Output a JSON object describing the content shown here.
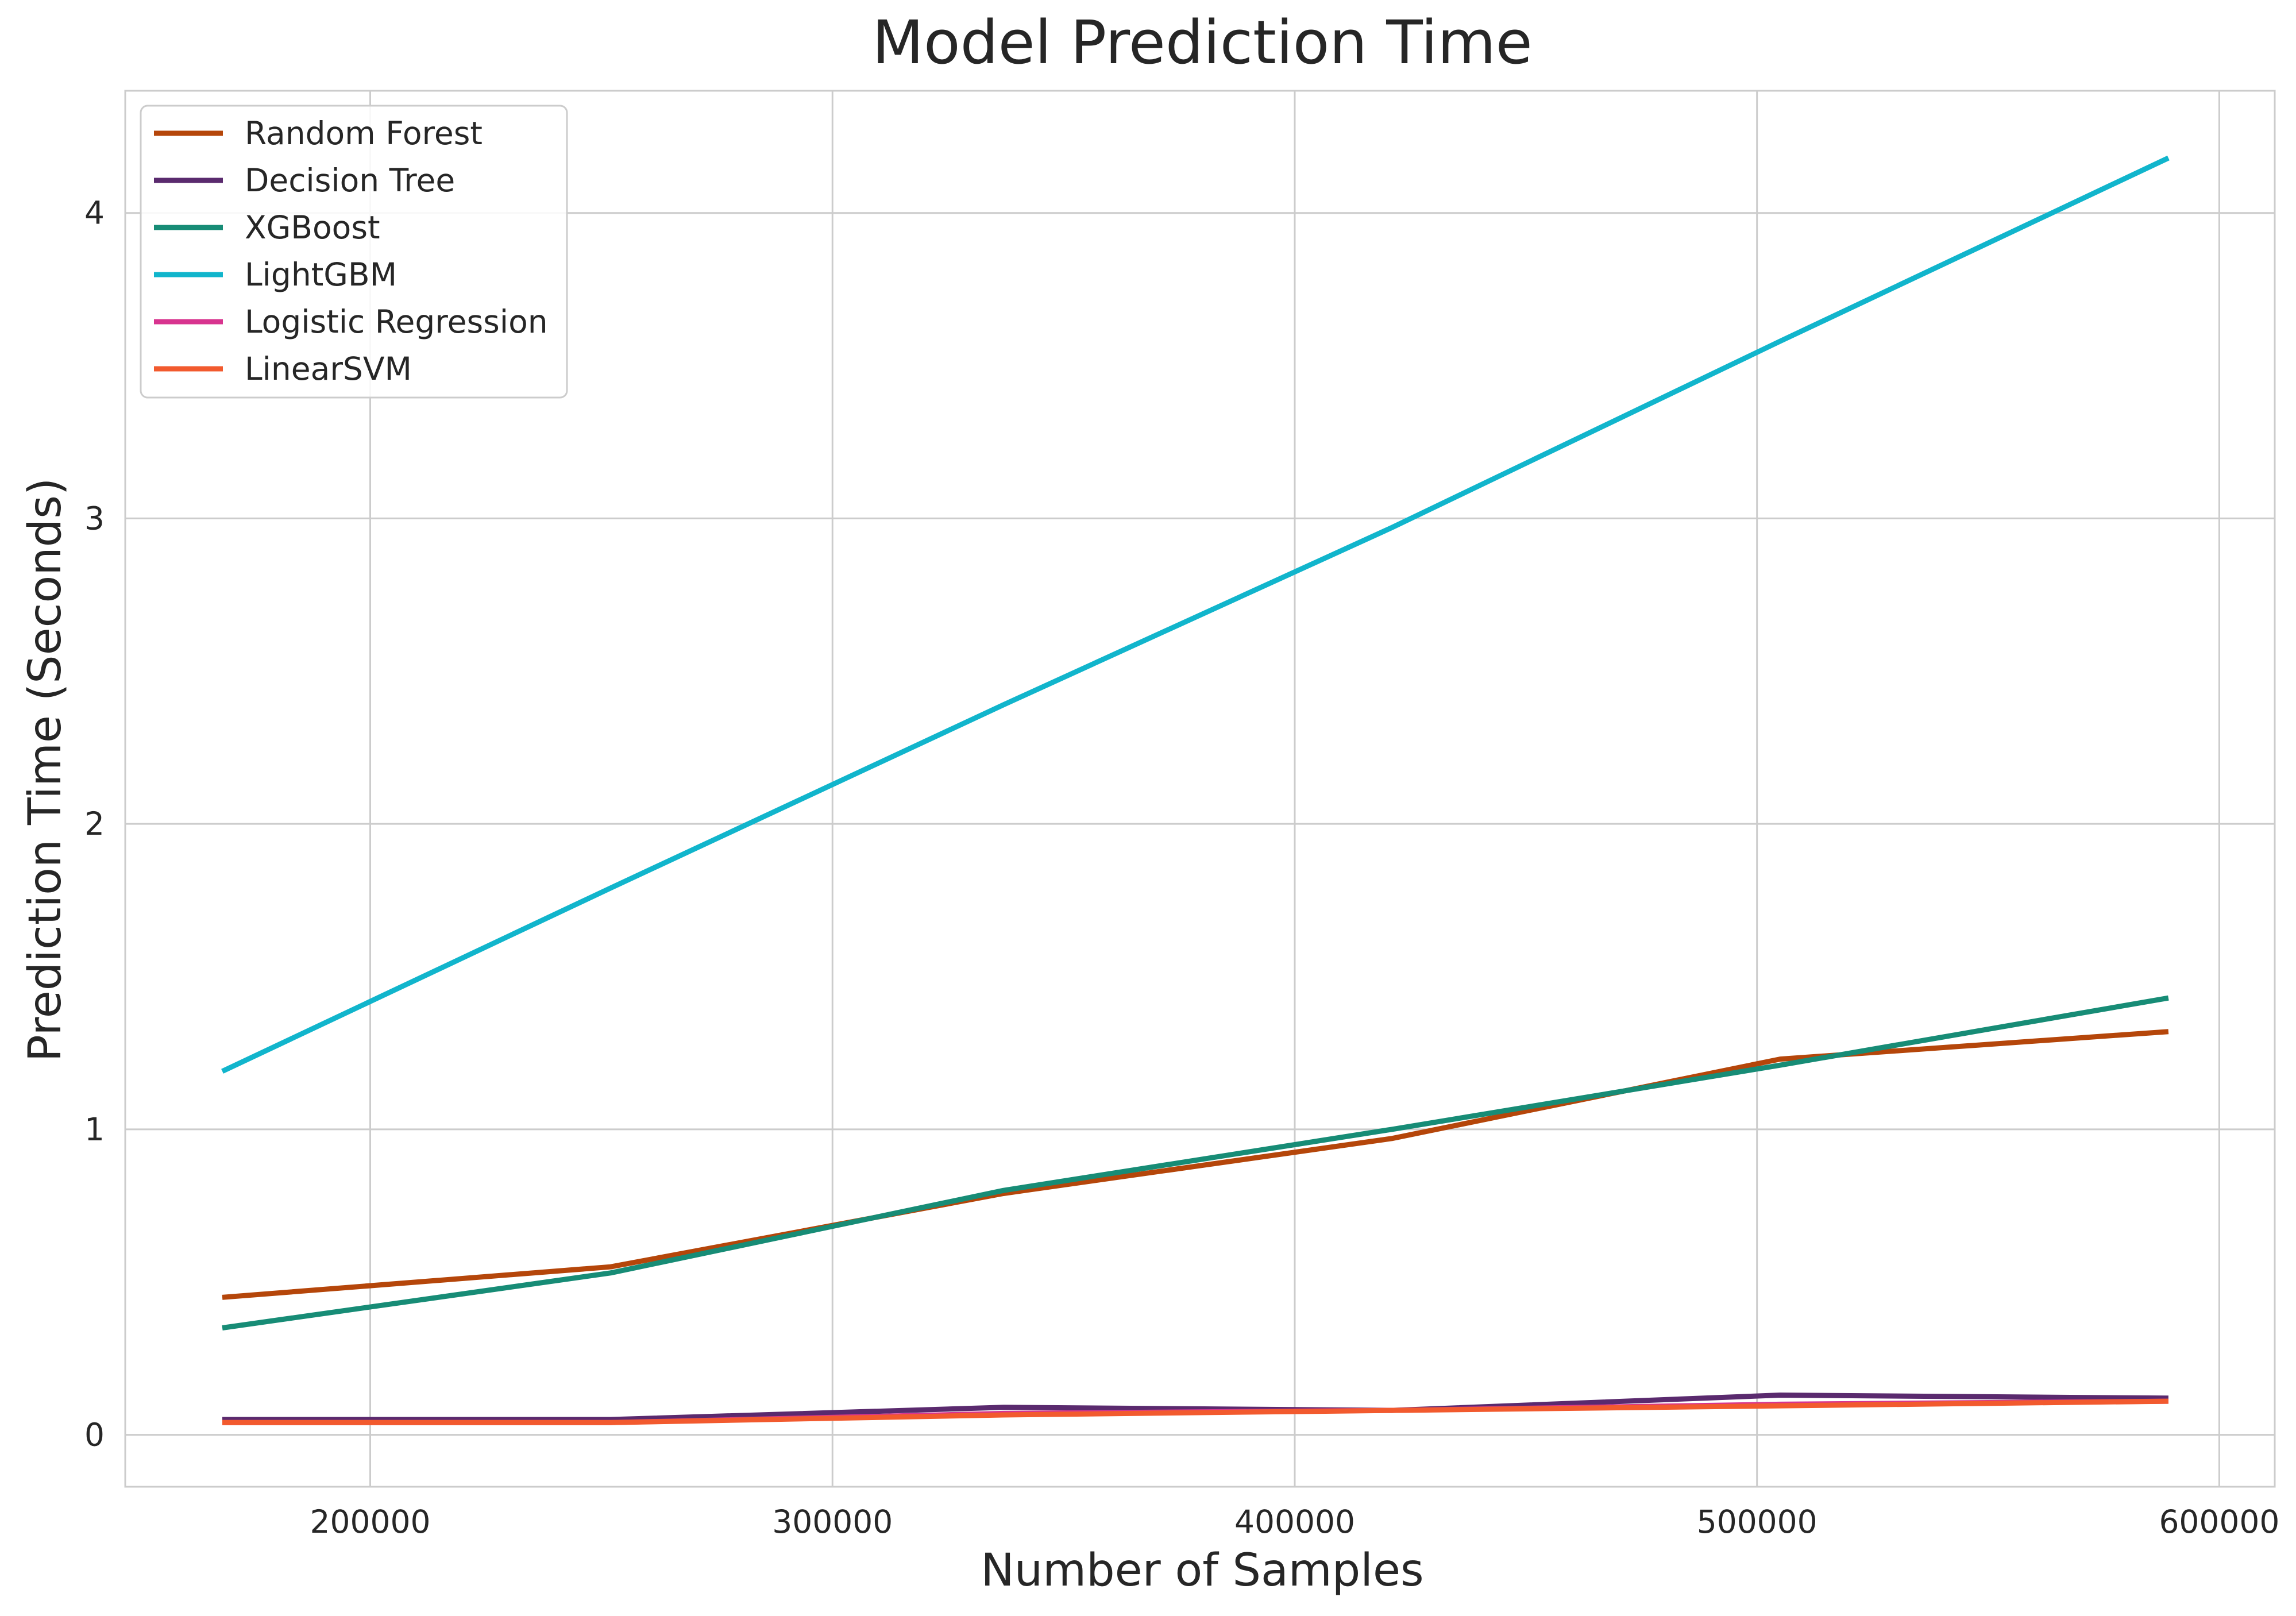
{
  "chart_data": {
    "type": "line",
    "title": "Model Prediction Time",
    "xlabel": "Number of Samples",
    "ylabel": "Prediction Time (Seconds)",
    "xlim": [
      147000,
      612000
    ],
    "ylim": [
      -0.17,
      4.4
    ],
    "grid": true,
    "legend_position": "top-left",
    "xticks": [
      200000,
      300000,
      400000,
      500000,
      600000
    ],
    "yticks": [
      0,
      1,
      2,
      3,
      4
    ],
    "x": [
      168000,
      252000,
      337000,
      421000,
      505000,
      589000
    ],
    "series": [
      {
        "name": "Random Forest",
        "color": "#b5460a",
        "values": [
          0.45,
          0.55,
          0.79,
          0.97,
          1.23,
          1.32
        ]
      },
      {
        "name": "Decision Tree",
        "color": "#5a2a6e",
        "values": [
          0.05,
          0.05,
          0.09,
          0.08,
          0.13,
          0.12
        ]
      },
      {
        "name": "XGBoost",
        "color": "#178c76",
        "values": [
          0.35,
          0.53,
          0.8,
          1.0,
          1.21,
          1.43
        ]
      },
      {
        "name": "LightGBM",
        "color": "#11b5cc",
        "values": [
          1.19,
          1.79,
          2.39,
          2.97,
          3.58,
          4.18
        ]
      },
      {
        "name": "Logistic Regression",
        "color": "#d8348f",
        "values": [
          0.04,
          0.04,
          0.07,
          0.08,
          0.1,
          0.11
        ]
      },
      {
        "name": "LinearSVM",
        "color": "#f25a2e",
        "values": [
          0.04,
          0.04,
          0.065,
          0.08,
          0.095,
          0.11
        ]
      }
    ]
  }
}
